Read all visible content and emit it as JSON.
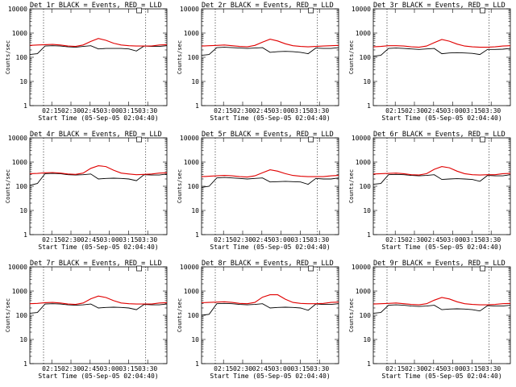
{
  "chart_data": {
    "type": "line",
    "ylabel": "Counts/sec",
    "xlabel": "Start Time (05-Sep-05 02:04:40)",
    "y_scale": "log",
    "ylim": [
      1,
      10000
    ],
    "y_tick_labels": [
      "1",
      "10",
      "100",
      "1000",
      "10000"
    ],
    "x_tick_labels": [
      "02:15",
      "02:30",
      "02:45",
      "03:00",
      "03:15",
      "03:30"
    ],
    "colors": {
      "events": "#000000",
      "lld": "#e00000"
    },
    "panels": [
      {
        "title": "Det 1r BLACK = Events, RED = LLD",
        "series": [
          {
            "key": "events",
            "values": [
              130,
              140,
              290,
              300,
              290,
              270,
              260,
              280,
              300,
              220,
              230,
              230,
              230,
              220,
              180,
              290,
              280,
              280,
              300
            ]
          },
          {
            "key": "lld",
            "values": [
              310,
              320,
              330,
              340,
              320,
              290,
              280,
              320,
              450,
              600,
              500,
              380,
              320,
              300,
              290,
              290,
              290,
              320,
              330
            ]
          }
        ]
      },
      {
        "title": "Det 2r BLACK = Events, RED = LLD",
        "series": [
          {
            "key": "events",
            "values": [
              120,
              130,
              250,
              260,
              250,
              240,
              230,
              240,
              250,
              160,
              170,
              175,
              170,
              160,
              140,
              240,
              230,
              230,
              250
            ]
          },
          {
            "key": "lld",
            "values": [
              290,
              300,
              310,
              320,
              300,
              280,
              270,
              310,
              420,
              560,
              470,
              360,
              300,
              280,
              270,
              280,
              290,
              300,
              310
            ]
          }
        ]
      },
      {
        "title": "Det 3r BLACK = Events, RED = LLD",
        "series": [
          {
            "key": "events",
            "values": [
              110,
              120,
              230,
              240,
              230,
              220,
              210,
              220,
              230,
              140,
              150,
              155,
              150,
              145,
              130,
              210,
              210,
              215,
              230
            ]
          },
          {
            "key": "lld",
            "values": [
              270,
              280,
              300,
              300,
              290,
              270,
              260,
              290,
              400,
              540,
              460,
              350,
              290,
              270,
              260,
              260,
              270,
              290,
              300
            ]
          }
        ]
      },
      {
        "title": "Det 4r BLACK = Events, RED = LLD",
        "series": [
          {
            "key": "events",
            "values": [
              110,
              130,
              330,
              340,
              330,
              300,
              290,
              300,
              320,
              200,
              210,
              215,
              210,
              200,
              170,
              300,
              290,
              290,
              320
            ]
          },
          {
            "key": "lld",
            "values": [
              330,
              340,
              360,
              370,
              350,
              320,
              310,
              350,
              550,
              700,
              650,
              460,
              350,
              320,
              300,
              310,
              320,
              350,
              360
            ]
          }
        ]
      },
      {
        "title": "Det 5r BLACK = Events, RED = LLD",
        "series": [
          {
            "key": "events",
            "values": [
              90,
              100,
              220,
              230,
              220,
              210,
              200,
              210,
              220,
              150,
              155,
              160,
              155,
              150,
              120,
              210,
              200,
              200,
              220
            ]
          },
          {
            "key": "lld",
            "values": [
              250,
              260,
              270,
              280,
              270,
              250,
              240,
              270,
              360,
              480,
              420,
              330,
              280,
              260,
              250,
              250,
              250,
              270,
              280
            ]
          }
        ]
      },
      {
        "title": "Det 6r BLACK = Events, RED = LLD",
        "series": [
          {
            "key": "events",
            "values": [
              120,
              130,
              300,
              310,
              300,
              280,
              270,
              280,
              300,
              190,
              200,
              205,
              200,
              190,
              160,
              280,
              270,
              270,
              300
            ]
          },
          {
            "key": "lld",
            "values": [
              320,
              330,
              340,
              350,
              330,
              300,
              290,
              330,
              500,
              650,
              580,
              420,
              330,
              300,
              290,
              300,
              300,
              330,
              340
            ]
          }
        ]
      },
      {
        "title": "Det 7r BLACK = Events, RED = LLD",
        "series": [
          {
            "key": "events",
            "values": [
              120,
              130,
              290,
              300,
              290,
              270,
              260,
              270,
              290,
              200,
              210,
              215,
              210,
              200,
              170,
              280,
              270,
              270,
              290
            ]
          },
          {
            "key": "lld",
            "values": [
              300,
              310,
              330,
              340,
              320,
              290,
              280,
              320,
              480,
              620,
              540,
              400,
              320,
              300,
              290,
              290,
              290,
              320,
              330
            ]
          }
        ]
      },
      {
        "title": "Det 8r BLACK = Events, RED = LLD",
        "series": [
          {
            "key": "events",
            "values": [
              100,
              110,
              300,
              310,
              300,
              280,
              270,
              280,
              300,
              200,
              210,
              215,
              210,
              200,
              160,
              290,
              280,
              280,
              300
            ]
          },
          {
            "key": "lld",
            "values": [
              330,
              340,
              350,
              360,
              340,
              310,
              300,
              340,
              560,
              700,
              700,
              460,
              340,
              310,
              300,
              300,
              310,
              340,
              350
            ]
          }
        ]
      },
      {
        "title": "Det 9r BLACK = Events, RED = LLD",
        "series": [
          {
            "key": "events",
            "values": [
              120,
              130,
              260,
              270,
              260,
              240,
              230,
              240,
              260,
              170,
              180,
              185,
              180,
              170,
              150,
              250,
              240,
              240,
              260
            ]
          },
          {
            "key": "lld",
            "values": [
              290,
              300,
              310,
              320,
              300,
              280,
              270,
              300,
              420,
              540,
              470,
              360,
              300,
              280,
              270,
              270,
              280,
              300,
              310
            ]
          }
        ]
      }
    ]
  }
}
